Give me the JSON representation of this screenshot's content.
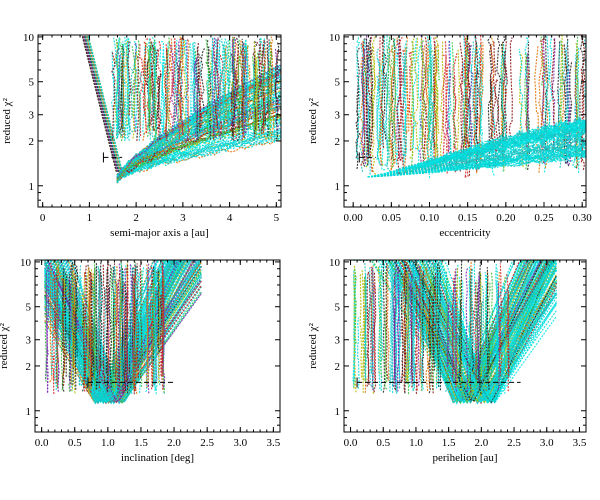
{
  "chart_data": [
    {
      "type": "scatter",
      "xlabel": "semi-major axis a [au]",
      "ylabel": "reduced χ²",
      "xlim": [
        -0.1,
        5.1
      ],
      "ylim": [
        0.72,
        10.3
      ],
      "yscale": "log",
      "xticks": [
        0,
        1,
        2,
        3,
        4,
        5
      ],
      "yticks": [
        1,
        2,
        3,
        5,
        10
      ],
      "band": {
        "type": "v_left_arc_right",
        "x_min": 1.6,
        "left_top": 0.85,
        "right": 5.1
      },
      "threshold": {
        "y": 1.55,
        "x_start": 1.3,
        "x_end": 1.7
      }
    },
    {
      "type": "scatter",
      "xlabel": "eccentricity",
      "ylabel": "reduced χ²",
      "xlim": [
        -0.012,
        0.305
      ],
      "ylim": [
        0.72,
        10.3
      ],
      "yscale": "log",
      "xticks": [
        0.0,
        0.05,
        0.1,
        0.15,
        0.2,
        0.25,
        0.3
      ],
      "yticks": [
        1,
        2,
        3,
        5,
        10
      ],
      "band": {
        "type": "flat",
        "x_start": 0.005,
        "x_end": 0.305
      },
      "threshold": {
        "y": 1.55,
        "x_start": 0.008,
        "x_end": 0.03
      }
    },
    {
      "type": "scatter",
      "xlabel": "inclination [deg]",
      "ylabel": "reduced χ²",
      "xlim": [
        -0.1,
        3.6
      ],
      "ylim": [
        0.72,
        10.3
      ],
      "yscale": "log",
      "xticks": [
        0.0,
        0.5,
        1.0,
        1.5,
        2.0,
        2.5,
        3.0,
        3.5
      ],
      "yticks": [
        1,
        2,
        3,
        5,
        10
      ],
      "band": {
        "type": "double_v",
        "v1_min": 0.95,
        "v2_min": 1.1,
        "x_start": 0.05,
        "x_end": 2.45
      },
      "threshold": {
        "y": 1.55,
        "x_start": 0.7,
        "x_end": 2.0
      }
    },
    {
      "type": "scatter",
      "xlabel": "perihelion [au]",
      "ylabel": "reduced χ²",
      "xlim": [
        -0.1,
        3.6
      ],
      "ylim": [
        0.72,
        10.3
      ],
      "yscale": "log",
      "xticks": [
        0.0,
        0.5,
        1.0,
        1.5,
        2.0,
        2.5,
        3.0,
        3.5
      ],
      "yticks": [
        1,
        2,
        3,
        5,
        10
      ],
      "band": {
        "type": "double_v",
        "v1_min": 1.72,
        "v2_min": 2.05,
        "x_start": 0.05,
        "x_end": 3.2
      },
      "threshold": {
        "y": 1.55,
        "x_start": 0.1,
        "x_end": 2.6
      }
    }
  ]
}
